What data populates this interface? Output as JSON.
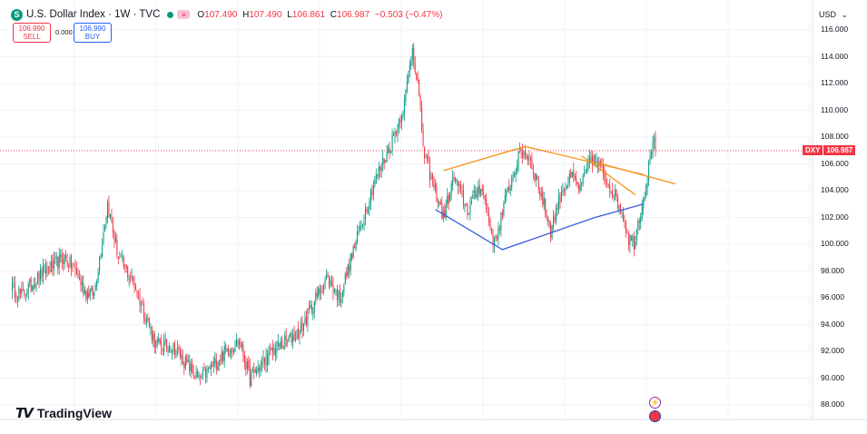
{
  "header": {
    "symbol_icon": "S",
    "title": "U.S. Dollar Index · 1W · TVC",
    "eye_icon": "eye-icon",
    "ohlc": {
      "o_label": "O",
      "o": "107.490",
      "h_label": "H",
      "h": "107.490",
      "l_label": "L",
      "l": "106.861",
      "c_label": "C",
      "c": "106.987",
      "change": "−0.503 (−0.47%)"
    }
  },
  "trade": {
    "sell_price": "106.990",
    "sell_label": "SELL",
    "spread": "0.000",
    "buy_price": "106.990",
    "buy_label": "BUY"
  },
  "currency": {
    "label": "USD",
    "chevron": "⌄"
  },
  "price_tag": {
    "symbol": "DXY",
    "price": "106.987"
  },
  "logo": {
    "mark": "𝟭𝟳",
    "text": "TradingView"
  },
  "events": {
    "flash": "⚡",
    "flag": "US"
  },
  "colors": {
    "up": "#089981",
    "down": "#f23645",
    "trend_orange": "#f7931a",
    "trend_blue": "#3b5bdb",
    "grid": "#f0f3fa"
  },
  "chart_data": {
    "type": "candlestick",
    "timeframe": "1W",
    "y_ticks": [
      "116.000",
      "114.000",
      "112.000",
      "110.000",
      "108.000",
      "106.000",
      "104.000",
      "102.000",
      "100.000",
      "98.000",
      "96.000",
      "94.000",
      "92.000",
      "90.000",
      "88.000"
    ],
    "ylim": [
      87.0,
      117.0
    ],
    "last_price": 106.987,
    "waypoints": [
      [
        0,
        96.8
      ],
      [
        8,
        96.2
      ],
      [
        25,
        98.0
      ],
      [
        40,
        99.0
      ],
      [
        48,
        98.0
      ],
      [
        55,
        96.5
      ],
      [
        62,
        96.3
      ],
      [
        72,
        103.0
      ],
      [
        80,
        99.0
      ],
      [
        92,
        97.0
      ],
      [
        108,
        92.5
      ],
      [
        122,
        92.3
      ],
      [
        140,
        89.8
      ],
      [
        160,
        92.0
      ],
      [
        170,
        92.8
      ],
      [
        178,
        90.0
      ],
      [
        195,
        92.0
      ],
      [
        215,
        93.5
      ],
      [
        235,
        97.5
      ],
      [
        245,
        96.0
      ],
      [
        255,
        99.5
      ],
      [
        270,
        104.5
      ],
      [
        283,
        107.5
      ],
      [
        293,
        110.5
      ],
      [
        299,
        114.7
      ],
      [
        303,
        112.0
      ],
      [
        308,
        106.5
      ],
      [
        316,
        104.0
      ],
      [
        322,
        102.0
      ],
      [
        330,
        105.0
      ],
      [
        340,
        102.5
      ],
      [
        350,
        104.5
      ],
      [
        360,
        100.0
      ],
      [
        370,
        104.0
      ],
      [
        380,
        107.0
      ],
      [
        386,
        106.5
      ],
      [
        394,
        104.0
      ],
      [
        402,
        101.0
      ],
      [
        410,
        104.0
      ],
      [
        418,
        105.0
      ],
      [
        424,
        104.0
      ],
      [
        432,
        106.5
      ],
      [
        440,
        105.5
      ],
      [
        448,
        104.0
      ],
      [
        455,
        102.5
      ],
      [
        460,
        100.5
      ],
      [
        464,
        100.2
      ],
      [
        470,
        103.0
      ],
      [
        474,
        105.0
      ],
      [
        478,
        108.0
      ],
      [
        480,
        107.0
      ]
    ],
    "trendlines": [
      {
        "color": "orange",
        "points": [
          [
            322,
            105.5
          ],
          [
            383,
            107.3
          ],
          [
            471,
            105.2
          ]
        ]
      },
      {
        "color": "orange",
        "points": [
          [
            425,
            106.6
          ],
          [
            465,
            103.7
          ]
        ]
      },
      {
        "color": "orange",
        "points": [
          [
            440,
            106.0
          ],
          [
            495,
            104.5
          ]
        ]
      },
      {
        "color": "blue",
        "points": [
          [
            316,
            102.6
          ],
          [
            366,
            99.6
          ],
          [
            435,
            102.0
          ],
          [
            471,
            103.0
          ]
        ]
      }
    ]
  }
}
